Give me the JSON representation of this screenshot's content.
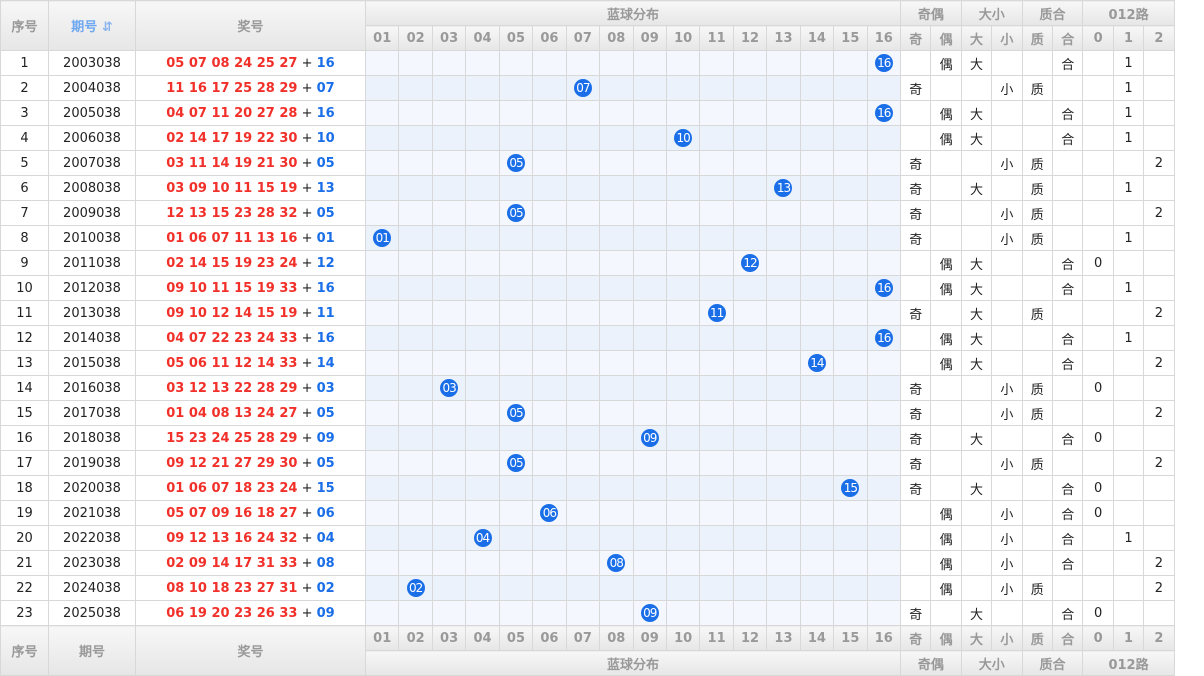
{
  "header": {
    "seq": "序号",
    "issue": "期号",
    "sort_icon": "⇵",
    "prize": "奖号",
    "blue_dist": "蓝球分布",
    "odd_even": "奇偶",
    "big_small": "大小",
    "prime_comp": "质合",
    "road": "012路",
    "sub": {
      "odd": "奇",
      "even": "偶",
      "big": "大",
      "small": "小",
      "prime": "质",
      "comp": "合",
      "r0": "0",
      "r1": "1",
      "r2": "2"
    }
  },
  "blue_numbers": [
    "01",
    "02",
    "03",
    "04",
    "05",
    "06",
    "07",
    "08",
    "09",
    "10",
    "11",
    "12",
    "13",
    "14",
    "15",
    "16"
  ],
  "plus": "+",
  "colors": {
    "red": "#f2302a",
    "blue": "#1a6ee8"
  },
  "rows": [
    {
      "seq": "1",
      "issue": "2003038",
      "reds": "05 07 08 24 25 27",
      "blue": "16",
      "oe": "偶",
      "bs": "大",
      "pc": "合",
      "road": "1"
    },
    {
      "seq": "2",
      "issue": "2004038",
      "reds": "11 16 17 25 28 29",
      "blue": "07",
      "oe": "奇",
      "bs": "小",
      "pc": "质",
      "road": "1"
    },
    {
      "seq": "3",
      "issue": "2005038",
      "reds": "04 07 11 20 27 28",
      "blue": "16",
      "oe": "偶",
      "bs": "大",
      "pc": "合",
      "road": "1"
    },
    {
      "seq": "4",
      "issue": "2006038",
      "reds": "02 14 17 19 22 30",
      "blue": "10",
      "oe": "偶",
      "bs": "大",
      "pc": "合",
      "road": "1"
    },
    {
      "seq": "5",
      "issue": "2007038",
      "reds": "03 11 14 19 21 30",
      "blue": "05",
      "oe": "奇",
      "bs": "小",
      "pc": "质",
      "road": "2"
    },
    {
      "seq": "6",
      "issue": "2008038",
      "reds": "03 09 10 11 15 19",
      "blue": "13",
      "oe": "奇",
      "bs": "大",
      "pc": "质",
      "road": "1"
    },
    {
      "seq": "7",
      "issue": "2009038",
      "reds": "12 13 15 23 28 32",
      "blue": "05",
      "oe": "奇",
      "bs": "小",
      "pc": "质",
      "road": "2"
    },
    {
      "seq": "8",
      "issue": "2010038",
      "reds": "01 06 07 11 13 16",
      "blue": "01",
      "oe": "奇",
      "bs": "小",
      "pc": "质",
      "road": "1"
    },
    {
      "seq": "9",
      "issue": "2011038",
      "reds": "02 14 15 19 23 24",
      "blue": "12",
      "oe": "偶",
      "bs": "大",
      "pc": "合",
      "road": "0"
    },
    {
      "seq": "10",
      "issue": "2012038",
      "reds": "09 10 11 15 19 33",
      "blue": "16",
      "oe": "偶",
      "bs": "大",
      "pc": "合",
      "road": "1"
    },
    {
      "seq": "11",
      "issue": "2013038",
      "reds": "09 10 12 14 15 19",
      "blue": "11",
      "oe": "奇",
      "bs": "大",
      "pc": "质",
      "road": "2"
    },
    {
      "seq": "12",
      "issue": "2014038",
      "reds": "04 07 22 23 24 33",
      "blue": "16",
      "oe": "偶",
      "bs": "大",
      "pc": "合",
      "road": "1"
    },
    {
      "seq": "13",
      "issue": "2015038",
      "reds": "05 06 11 12 14 33",
      "blue": "14",
      "oe": "偶",
      "bs": "大",
      "pc": "合",
      "road": "2"
    },
    {
      "seq": "14",
      "issue": "2016038",
      "reds": "03 12 13 22 28 29",
      "blue": "03",
      "oe": "奇",
      "bs": "小",
      "pc": "质",
      "road": "0"
    },
    {
      "seq": "15",
      "issue": "2017038",
      "reds": "01 04 08 13 24 27",
      "blue": "05",
      "oe": "奇",
      "bs": "小",
      "pc": "质",
      "road": "2"
    },
    {
      "seq": "16",
      "issue": "2018038",
      "reds": "15 23 24 25 28 29",
      "blue": "09",
      "oe": "奇",
      "bs": "大",
      "pc": "合",
      "road": "0"
    },
    {
      "seq": "17",
      "issue": "2019038",
      "reds": "09 12 21 27 29 30",
      "blue": "05",
      "oe": "奇",
      "bs": "小",
      "pc": "质",
      "road": "2"
    },
    {
      "seq": "18",
      "issue": "2020038",
      "reds": "01 06 07 18 23 24",
      "blue": "15",
      "oe": "奇",
      "bs": "大",
      "pc": "合",
      "road": "0"
    },
    {
      "seq": "19",
      "issue": "2021038",
      "reds": "05 07 09 16 18 27",
      "blue": "06",
      "oe": "偶",
      "bs": "小",
      "pc": "合",
      "road": "0"
    },
    {
      "seq": "20",
      "issue": "2022038",
      "reds": "09 12 13 16 24 32",
      "blue": "04",
      "oe": "偶",
      "bs": "小",
      "pc": "合",
      "road": "1"
    },
    {
      "seq": "21",
      "issue": "2023038",
      "reds": "02 09 14 17 31 33",
      "blue": "08",
      "oe": "偶",
      "bs": "小",
      "pc": "合",
      "road": "2"
    },
    {
      "seq": "22",
      "issue": "2024038",
      "reds": "08 10 18 23 27 31",
      "blue": "02",
      "oe": "偶",
      "bs": "小",
      "pc": "质",
      "road": "2"
    },
    {
      "seq": "23",
      "issue": "2025038",
      "reds": "06 19 20 23 26 33",
      "blue": "09",
      "oe": "奇",
      "bs": "大",
      "pc": "合",
      "road": "0"
    }
  ]
}
